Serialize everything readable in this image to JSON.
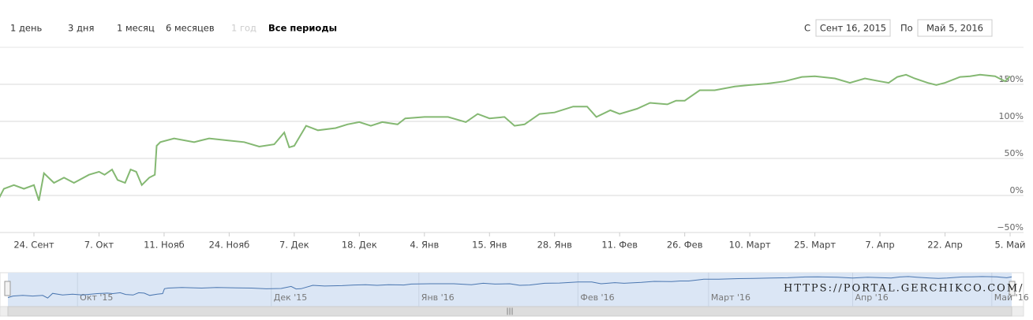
{
  "range_selector": {
    "buttons": [
      "1 день",
      "3 дня",
      "1 месяц",
      "6 месяцев",
      "1 год",
      "Все периоды"
    ],
    "selected": 5,
    "disabled": [
      4
    ],
    "from_label": "С",
    "from_value": "Сент 16, 2015",
    "to_label": "По",
    "to_value": "Май 5, 2016"
  },
  "watermark": "HTTPS://PORTAL.GERCHIKCO.COM/",
  "chart_data": {
    "type": "line",
    "x": [
      "2015-09-17",
      "2015-09-18",
      "2015-09-20",
      "2015-09-22",
      "2015-09-24",
      "2015-09-25",
      "2015-09-26",
      "2015-09-28",
      "2015-09-30",
      "2015-10-02",
      "2015-10-05",
      "2015-10-07",
      "2015-10-10",
      "2015-10-14",
      "2015-10-17",
      "2015-10-21",
      "2015-10-24",
      "2015-10-27",
      "2015-10-30",
      "2015-11-03",
      "2015-11-06",
      "2015-11-07",
      "2015-11-09",
      "2015-11-13",
      "2015-11-17",
      "2015-11-20",
      "2015-11-24",
      "2015-11-27",
      "2015-11-30",
      "2015-12-03",
      "2015-12-05",
      "2015-12-06",
      "2015-12-07",
      "2015-12-09",
      "2015-12-11",
      "2015-12-14",
      "2015-12-16",
      "2015-12-18",
      "2015-12-21",
      "2015-12-24",
      "2015-12-28",
      "2015-12-30",
      "2016-01-04",
      "2016-01-08",
      "2016-01-11",
      "2016-01-13",
      "2016-01-15",
      "2016-01-18",
      "2016-01-20",
      "2016-01-22",
      "2016-01-25",
      "2016-01-28",
      "2016-02-01",
      "2016-02-04",
      "2016-02-06",
      "2016-02-09",
      "2016-02-11",
      "2016-02-15",
      "2016-02-18",
      "2016-02-22",
      "2016-02-24",
      "2016-02-26",
      "2016-02-29",
      "2016-03-03",
      "2016-03-07",
      "2016-03-10",
      "2016-03-14",
      "2016-03-18",
      "2016-03-22",
      "2016-03-25",
      "2016-03-29",
      "2016-04-01",
      "2016-04-04",
      "2016-04-07",
      "2016-04-09",
      "2016-04-11",
      "2016-04-13",
      "2016-04-15",
      "2016-04-18",
      "2016-04-20",
      "2016-04-22",
      "2016-04-25",
      "2016-04-27",
      "2016-04-29",
      "2016-05-02",
      "2016-05-04",
      "2016-05-05"
    ],
    "series": [
      {
        "color": "#84b872",
        "values": [
          -4,
          9,
          14,
          9,
          14,
          -7,
          30,
          17,
          24,
          17,
          28,
          32,
          28,
          35,
          21,
          17,
          35,
          32,
          14,
          24,
          28,
          67,
          72,
          77,
          72,
          77,
          74,
          72,
          66,
          69,
          85,
          65,
          67,
          94,
          88,
          91,
          96,
          99,
          94,
          99,
          96,
          104,
          106,
          106,
          99,
          110,
          104,
          106,
          94,
          96,
          110,
          112,
          120,
          120,
          106,
          115,
          110,
          117,
          125,
          123,
          128,
          128,
          142,
          142,
          147,
          149,
          151,
          154,
          160,
          161,
          158,
          152,
          158,
          154,
          152,
          160,
          163,
          158,
          152,
          149,
          152,
          160,
          161,
          163,
          161,
          154,
          161
        ]
      }
    ],
    "ylim": [
      -50,
      200
    ],
    "yticks": [
      {
        "value": -50,
        "label": "−50%"
      },
      {
        "value": 0,
        "label": "0%"
      },
      {
        "value": 50,
        "label": "50%"
      },
      {
        "value": 100,
        "label": "100%"
      },
      {
        "value": 150,
        "label": "150%"
      }
    ],
    "xticks": [
      {
        "value": "2015-09-24",
        "label": "24. Сент"
      },
      {
        "value": "2015-10-07",
        "label": "7. Окт"
      },
      {
        "value": "2015-11-11",
        "label": "11. Нояб"
      },
      {
        "value": "2015-11-24",
        "label": "24. Нояб"
      },
      {
        "value": "2015-12-07",
        "label": "7. Дек"
      },
      {
        "value": "2015-12-18",
        "label": "18. Дек"
      },
      {
        "value": "2016-01-04",
        "label": "4. Янв"
      },
      {
        "value": "2016-01-15",
        "label": "15. Янв"
      },
      {
        "value": "2016-01-28",
        "label": "28. Янв"
      },
      {
        "value": "2016-02-11",
        "label": "11. Фев"
      },
      {
        "value": "2016-02-26",
        "label": "26. Фев"
      },
      {
        "value": "2016-03-10",
        "label": "10. Март"
      },
      {
        "value": "2016-03-25",
        "label": "25. Март"
      },
      {
        "value": "2016-04-07",
        "label": "7. Апр"
      },
      {
        "value": "2016-04-22",
        "label": "22. Апр"
      },
      {
        "value": "2016-05-05",
        "label": "5. Май"
      }
    ],
    "grid": true,
    "navigator": {
      "color": "#4a76b0",
      "xticks": [
        {
          "value": "2015-10-01",
          "label": "Окт '15"
        },
        {
          "value": "2015-12-01",
          "label": "Дек '15"
        },
        {
          "value": "2016-01-01",
          "label": "Янв '16"
        },
        {
          "value": "2016-02-01",
          "label": "Фев '16"
        },
        {
          "value": "2016-03-01",
          "label": "Март '16"
        },
        {
          "value": "2016-04-01",
          "label": "Апр '16"
        },
        {
          "value": "2016-05-01",
          "label": "Май '16"
        }
      ]
    }
  }
}
